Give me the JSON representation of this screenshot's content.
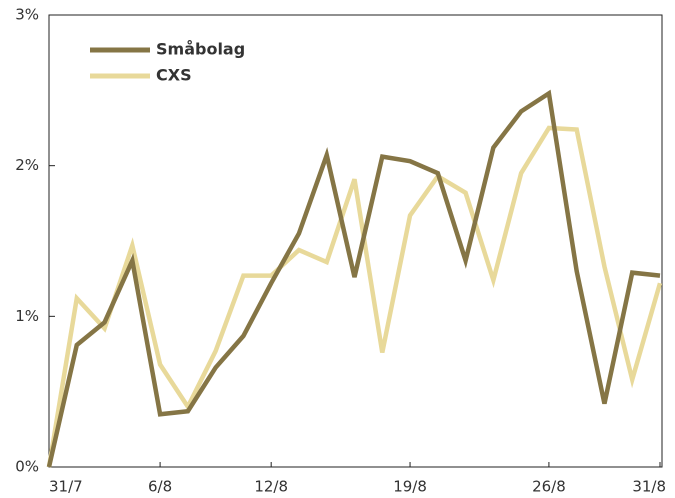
{
  "chart_data": {
    "type": "line",
    "categories": [
      "31/7",
      null,
      null,
      null,
      "6/8",
      null,
      null,
      null,
      "12/8",
      null,
      null,
      null,
      null,
      "19/8",
      null,
      null,
      null,
      null,
      "26/8",
      null,
      null,
      null,
      "31/8"
    ],
    "series": [
      {
        "name": "Småbolag",
        "color": "#857545",
        "values": [
          0,
          0.81,
          0.96,
          1.37,
          0.35,
          0.37,
          0.66,
          0.87,
          1.22,
          1.55,
          2.07,
          1.26,
          2.06,
          2.03,
          1.95,
          1.37,
          2.12,
          2.36,
          2.48,
          1.3,
          0.42,
          1.29,
          1.27
        ]
      },
      {
        "name": "CXS",
        "color": "#e8d99a",
        "values": [
          0,
          1.12,
          0.92,
          1.47,
          0.68,
          0.4,
          0.77,
          1.27,
          1.27,
          1.44,
          1.36,
          1.91,
          0.76,
          1.67,
          1.93,
          1.82,
          1.24,
          1.95,
          2.25,
          2.24,
          1.33,
          0.58,
          1.22
        ]
      }
    ],
    "ylim": [
      0,
      3
    ],
    "yticks": [
      {
        "value": 0,
        "label": "0%"
      },
      {
        "value": 1,
        "label": "1%"
      },
      {
        "value": 2,
        "label": "2%"
      },
      {
        "value": 3,
        "label": "3%"
      }
    ],
    "legend": "upper left"
  }
}
